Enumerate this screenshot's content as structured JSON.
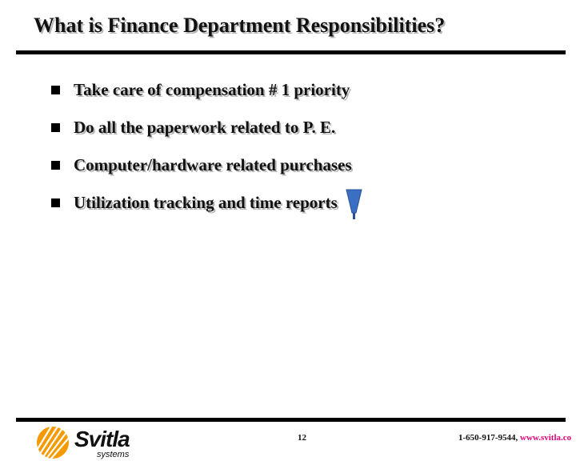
{
  "slide": {
    "title": "What is Finance Department Responsibilities?",
    "bullets": [
      {
        "text": "Take care of compensation # 1 priority"
      },
      {
        "text": "Do all the paperwork related to P. E."
      },
      {
        "text": "Computer/hardware related purchases"
      },
      {
        "text": "Utilization tracking and time reports"
      }
    ]
  },
  "footer": {
    "logo_word": "Svitla",
    "logo_sub": "systems",
    "page_number": "12",
    "phone": "1-650-917-9544,",
    "website": "www.svitla.co"
  },
  "colors": {
    "logo_orange": "#f59a00",
    "link_magenta": "#e0007a",
    "cursor_blue": "#3b6fc4"
  },
  "icons": {
    "bullet": "square-bullet-icon",
    "cursor": "pointer-cursor-icon",
    "logo": "sun-rays-logo-icon"
  }
}
